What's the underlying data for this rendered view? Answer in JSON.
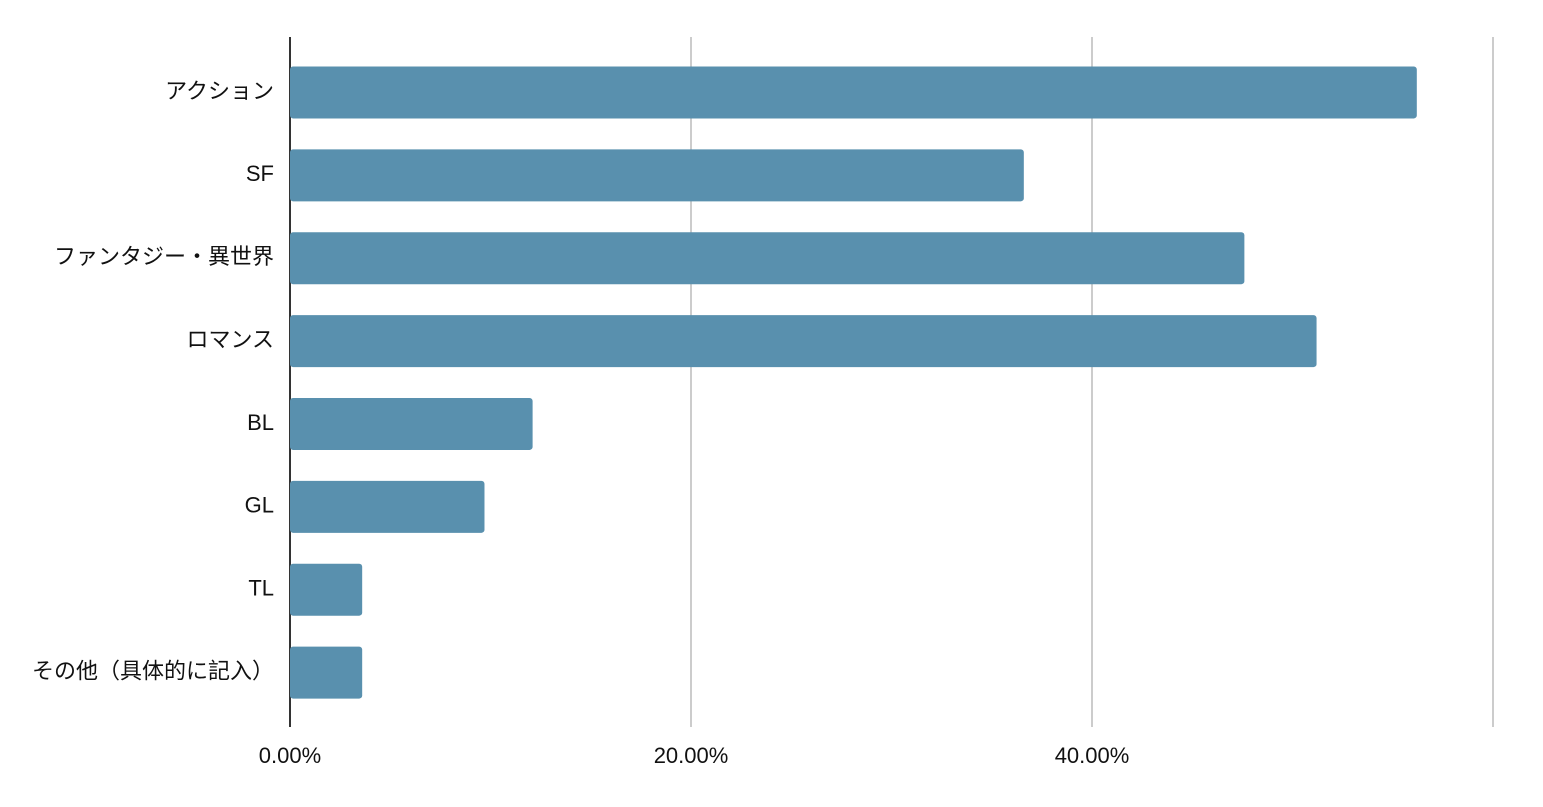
{
  "chart_data": {
    "type": "bar",
    "orientation": "horizontal",
    "categories": [
      "アクション",
      "SF",
      "ファンタジー・異世界",
      "ロマンス",
      "BL",
      "GL",
      "TL",
      "その他（具体的に記入）"
    ],
    "values": [
      56.2,
      36.6,
      47.6,
      51.2,
      12.1,
      9.7,
      3.6,
      3.6
    ],
    "color": "#5990ae",
    "xlim": [
      0,
      60
    ],
    "xticks": [
      {
        "value": 0,
        "label": "0.00%"
      },
      {
        "value": 20,
        "label": "20.00%"
      },
      {
        "value": 40,
        "label": "40.00%"
      },
      {
        "value": 60,
        "label": null
      }
    ],
    "grid": true
  }
}
